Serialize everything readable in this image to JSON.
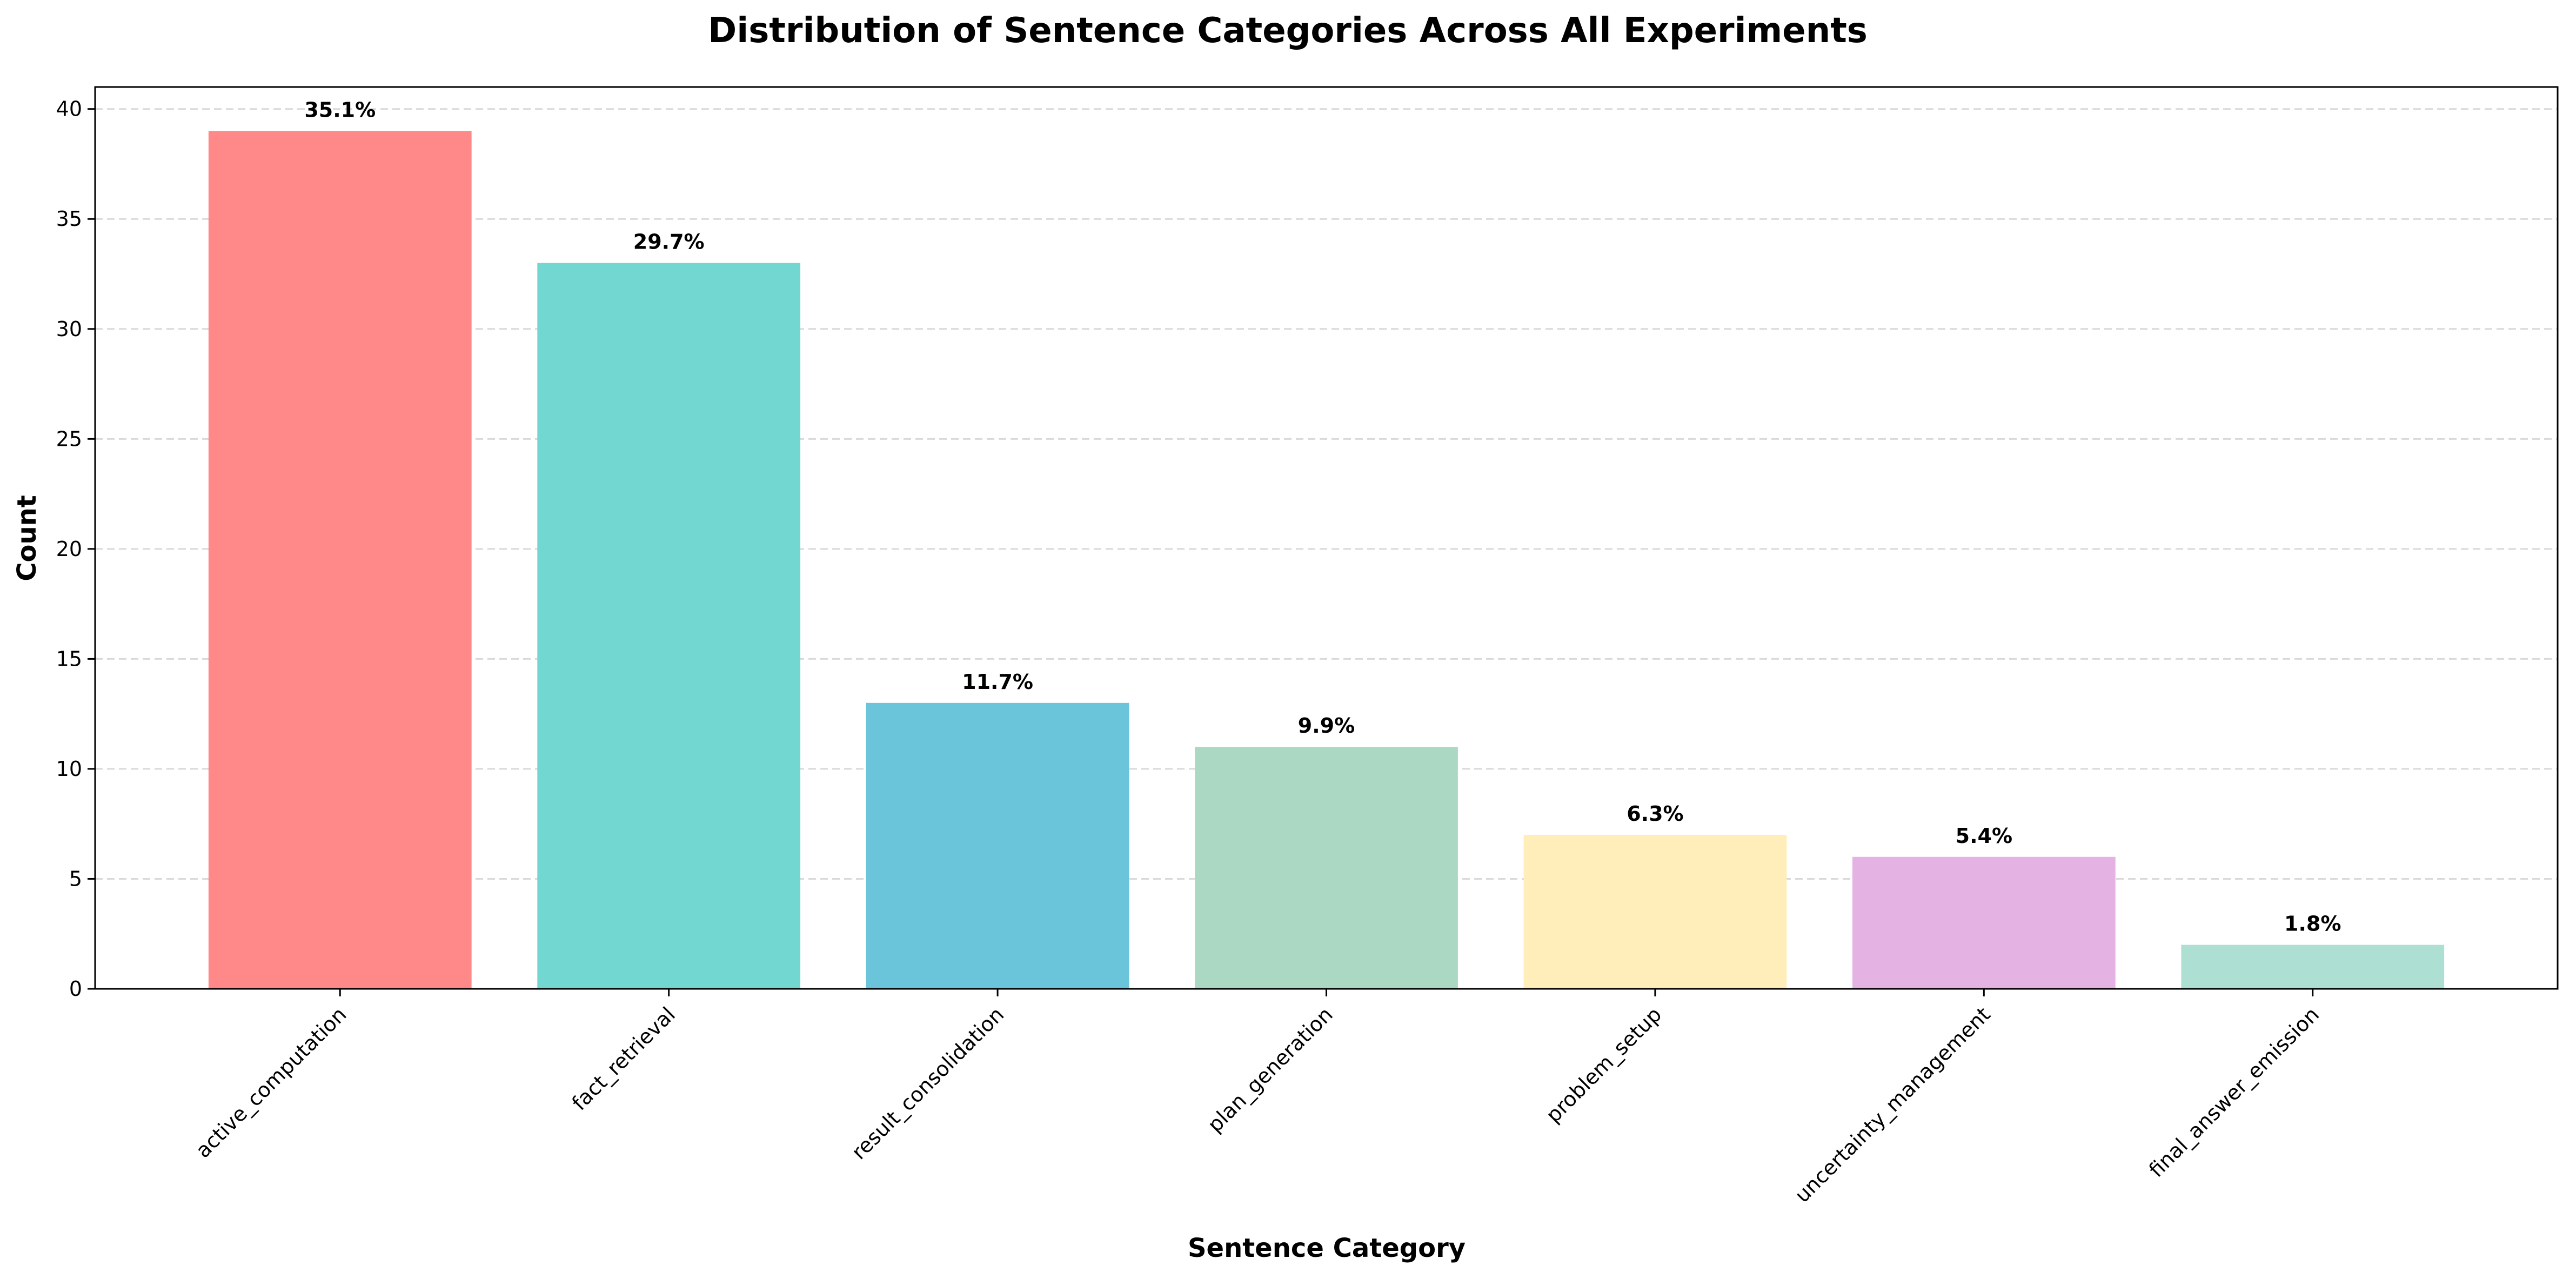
{
  "chart_data": {
    "type": "bar",
    "title": "Distribution of Sentence Categories Across All Experiments",
    "xlabel": "Sentence Category",
    "ylabel": "Count",
    "categories": [
      "active_computation",
      "fact_retrieval",
      "result_consolidation",
      "plan_generation",
      "problem_setup",
      "uncertainty_management",
      "final_answer_emission"
    ],
    "values": [
      39,
      33,
      13,
      11,
      7,
      6,
      2
    ],
    "data_labels": [
      "35.1%",
      "29.7%",
      "11.7%",
      "9.9%",
      "6.3%",
      "5.4%",
      "1.8%"
    ],
    "colors": [
      "#FF8888",
      "#72D7D0",
      "#6AC5DA",
      "#ABD8C3",
      "#FFEEB9",
      "#E4B3E4",
      "#ADE0D3"
    ],
    "ylim": [
      0,
      41
    ],
    "yticks": [
      0,
      5,
      10,
      15,
      20,
      25,
      30,
      35,
      40
    ],
    "ytick_labels": [
      "0",
      "5",
      "10",
      "15",
      "20",
      "25",
      "30",
      "35",
      "40"
    ],
    "grid": true,
    "legend": "none"
  }
}
